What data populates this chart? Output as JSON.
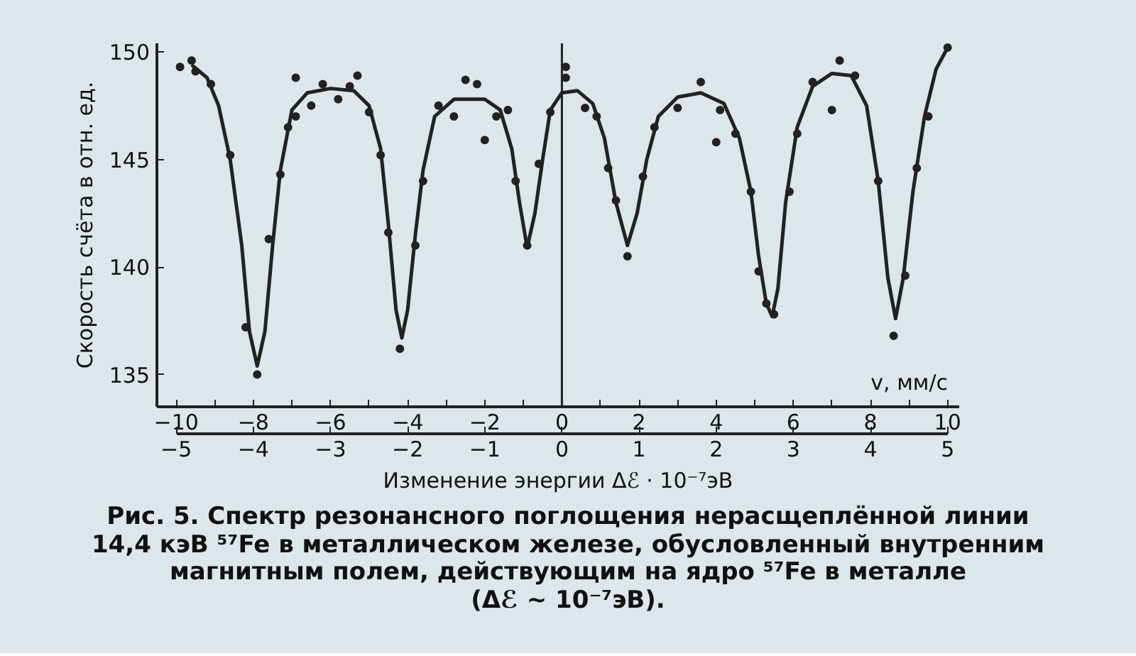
{
  "chart_data": {
    "type": "line",
    "xlabel": "v, мм/с",
    "x2label": "Изменение энергии Δℰ · 10⁻⁷эВ",
    "ylabel": "Скорость счёта в отн. ед.",
    "xlim": [
      -10.5,
      10.3
    ],
    "ylim": [
      133.5,
      150.4
    ],
    "xticks": [
      -10,
      {
        "value": -9,
        "label": null
      },
      -8,
      {
        "value": -7,
        "label": null
      },
      -6,
      {
        "value": -5,
        "label": null
      },
      -4,
      {
        "value": -3,
        "label": null
      },
      -2,
      {
        "value": -1,
        "label": null
      },
      0,
      {
        "value": 1,
        "label": null
      },
      2,
      {
        "value": 3,
        "label": null
      },
      4,
      {
        "value": 5,
        "label": null
      },
      6,
      {
        "value": 7,
        "label": null
      },
      8,
      {
        "value": 9,
        "label": null
      },
      10
    ],
    "x2lim": [
      -5.25,
      5.15
    ],
    "x2ticks": [
      -5,
      -4,
      -3,
      -2,
      -1,
      0,
      1,
      2,
      3,
      4,
      5
    ],
    "yticks": [
      135,
      140,
      145,
      150
    ],
    "grid": false,
    "ref_lines": [
      {
        "axis": "x",
        "value": 0,
        "color": "#222222"
      }
    ],
    "series": [
      {
        "color": "#222222",
        "marker": "none",
        "line_style": "solid",
        "x": [
          -9.6,
          -9.2,
          -8.9,
          -8.6,
          -8.3,
          -8.1,
          -7.9,
          -7.7,
          -7.5,
          -7.3,
          -7.0,
          -6.6,
          -6.0,
          -5.4,
          -5.0,
          -4.7,
          -4.5,
          -4.3,
          -4.15,
          -4.0,
          -3.8,
          -3.6,
          -3.3,
          -2.8,
          -2.0,
          -1.6,
          -1.3,
          -1.1,
          -0.9,
          -0.7,
          -0.5,
          -0.3,
          0.0,
          0.4,
          0.8,
          1.1,
          1.4,
          1.7,
          1.95,
          2.2,
          2.5,
          3.0,
          3.6,
          4.2,
          4.6,
          4.9,
          5.1,
          5.3,
          5.45,
          5.6,
          5.8,
          6.1,
          6.5,
          7.0,
          7.5,
          7.9,
          8.2,
          8.45,
          8.65,
          8.85,
          9.1,
          9.4,
          9.7,
          10.0
        ],
        "values": [
          149.4,
          148.8,
          147.5,
          145,
          141,
          137,
          135.4,
          137,
          141,
          144.5,
          147.3,
          148.1,
          148.3,
          148.2,
          147.5,
          145.5,
          142,
          138,
          136.7,
          138,
          141.5,
          144.5,
          147,
          147.8,
          147.8,
          147.3,
          145.5,
          143,
          140.9,
          142.5,
          145,
          147.3,
          148.1,
          148.2,
          147.6,
          146,
          143,
          141.0,
          142.5,
          145,
          147,
          147.9,
          148.1,
          147.6,
          146,
          143.5,
          140.5,
          138.3,
          137.7,
          139,
          143,
          146.5,
          148.4,
          149,
          148.9,
          147.5,
          144,
          139.5,
          137.6,
          139.5,
          143.5,
          147,
          149.2,
          150.2
        ]
      },
      {
        "type": "scatter",
        "color": "#222222",
        "marker": "circle",
        "x": [
          -9.9,
          -9.6,
          -9.5,
          -9.1,
          -8.6,
          -8.2,
          -7.9,
          -7.6,
          -7.3,
          -7.1,
          -6.9,
          -6.9,
          -6.5,
          -6.2,
          -5.8,
          -5.5,
          -5.3,
          -5.0,
          -4.7,
          -4.5,
          -4.2,
          -3.8,
          -3.6,
          -3.2,
          -2.8,
          -2.5,
          -2.2,
          -2.0,
          -1.7,
          -1.4,
          -1.2,
          -0.9,
          -0.6,
          -0.3,
          0.1,
          0.1,
          0.6,
          0.9,
          1.2,
          1.4,
          1.7,
          2.1,
          2.4,
          3.0,
          3.6,
          4.0,
          4.1,
          4.5,
          4.9,
          5.1,
          5.3,
          5.5,
          5.9,
          6.1,
          6.5,
          7.0,
          7.2,
          7.6,
          8.2,
          8.6,
          8.9,
          9.2,
          9.5,
          10.0
        ],
        "values": [
          149.3,
          149.6,
          149.1,
          148.5,
          145.2,
          137.2,
          135.0,
          141.3,
          144.3,
          146.5,
          148.8,
          147,
          147.5,
          148.5,
          147.8,
          148.4,
          148.9,
          147.2,
          145.2,
          141.6,
          136.2,
          141.0,
          144,
          147.5,
          147,
          148.7,
          148.5,
          145.9,
          147,
          147.3,
          144,
          141,
          144.8,
          147.2,
          149.3,
          148.8,
          147.4,
          147,
          144.6,
          143.1,
          140.5,
          144.2,
          146.5,
          147.4,
          148.6,
          145.8,
          147.3,
          146.2,
          143.5,
          139.8,
          138.3,
          137.8,
          143.5,
          146.2,
          148.6,
          147.3,
          149.6,
          148.9,
          144,
          136.8,
          139.6,
          144.6,
          147,
          150.2
        ]
      }
    ],
    "annotations": [
      "Рис. 5. Спектр резонансного поглощения нерасщеплённой линии\n14,4 кэВ ⁵⁷Fe в металлическом железе, обусловленный внутренним\nмагнитным полем, действующим на ядро ⁵⁷Fe в металле\n(Δℰ ~ 10⁻⁷эВ)."
    ]
  }
}
